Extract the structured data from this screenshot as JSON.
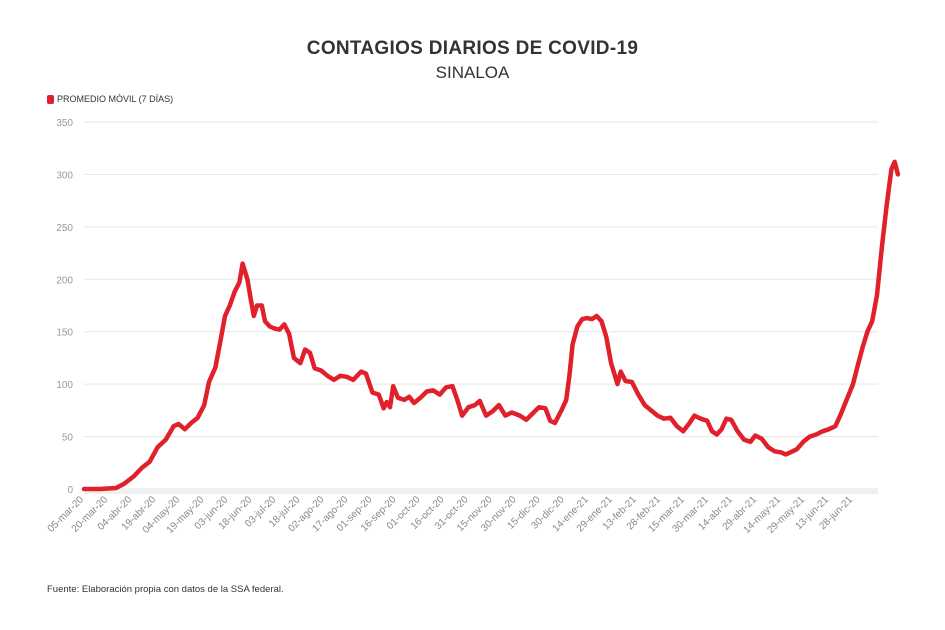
{
  "colors": {
    "series": "#e0202a",
    "grid": "#e6e6e6",
    "tick_text": "#999999",
    "title": "#333333"
  },
  "legend": {
    "label": "PROMEDIO MÓVIL (7 DÍAS)"
  },
  "footer": {
    "source": "Fuente: Elaboración propia con datos de la SSA federal."
  },
  "chart_data": {
    "type": "line",
    "title": "CONTAGIOS DIARIOS DE COVID-19",
    "subtitle": "SINALOA",
    "xlabel": "",
    "ylabel": "",
    "ylim": [
      0,
      350
    ],
    "yticks": [
      0,
      50,
      100,
      150,
      200,
      250,
      300,
      350
    ],
    "grid": true,
    "legend_position": "top-left",
    "xlim": [
      "2020-03-05",
      "2021-07-07"
    ],
    "x_tick_labels": [
      "05-mar-20",
      "20-mar-20",
      "04-abr-20",
      "19-abr-20",
      "04-may-20",
      "19-may-20",
      "03-jun-20",
      "18-jun-20",
      "03-jul-20",
      "18-jul-20",
      "02-ago-20",
      "17-ago-20",
      "01-sep-20",
      "16-sep-20",
      "01-oct-20",
      "16-oct-20",
      "31-oct-20",
      "15-nov-20",
      "30-nov-20",
      "15-dic-20",
      "30-dic-20",
      "14-ene-21",
      "29-ene-21",
      "13-feb-21",
      "28-feb-21",
      "15-mar-21",
      "30-mar-21",
      "14-abr-21",
      "29-abr-21",
      "14-may-21",
      "29-may-21",
      "13-jun-21",
      "28-jun-21"
    ],
    "series": [
      {
        "name": "PROMEDIO MÓVIL (7 DÍAS)",
        "color": "#e0202a",
        "points": [
          [
            "2020-03-05",
            0
          ],
          [
            "2020-03-15",
            0
          ],
          [
            "2020-03-25",
            1
          ],
          [
            "2020-03-30",
            5
          ],
          [
            "2020-04-05",
            12
          ],
          [
            "2020-04-10",
            20
          ],
          [
            "2020-04-15",
            26
          ],
          [
            "2020-04-20",
            40
          ],
          [
            "2020-04-25",
            47
          ],
          [
            "2020-04-30",
            60
          ],
          [
            "2020-05-03",
            62
          ],
          [
            "2020-05-07",
            57
          ],
          [
            "2020-05-11",
            63
          ],
          [
            "2020-05-15",
            68
          ],
          [
            "2020-05-19",
            80
          ],
          [
            "2020-05-22",
            102
          ],
          [
            "2020-05-26",
            116
          ],
          [
            "2020-05-29",
            140
          ],
          [
            "2020-06-01",
            165
          ],
          [
            "2020-06-04",
            175
          ],
          [
            "2020-06-07",
            188
          ],
          [
            "2020-06-10",
            197
          ],
          [
            "2020-06-12",
            215
          ],
          [
            "2020-06-15",
            200
          ],
          [
            "2020-06-17",
            182
          ],
          [
            "2020-06-19",
            165
          ],
          [
            "2020-06-21",
            175
          ],
          [
            "2020-06-24",
            175
          ],
          [
            "2020-06-26",
            160
          ],
          [
            "2020-06-29",
            155
          ],
          [
            "2020-07-02",
            153
          ],
          [
            "2020-07-05",
            152
          ],
          [
            "2020-07-08",
            157
          ],
          [
            "2020-07-11",
            148
          ],
          [
            "2020-07-14",
            125
          ],
          [
            "2020-07-18",
            120
          ],
          [
            "2020-07-21",
            133
          ],
          [
            "2020-07-24",
            130
          ],
          [
            "2020-07-27",
            115
          ],
          [
            "2020-07-31",
            113
          ],
          [
            "2020-08-04",
            108
          ],
          [
            "2020-08-08",
            104
          ],
          [
            "2020-08-12",
            108
          ],
          [
            "2020-08-16",
            107
          ],
          [
            "2020-08-20",
            104
          ],
          [
            "2020-08-25",
            112
          ],
          [
            "2020-08-28",
            110
          ],
          [
            "2020-09-01",
            92
          ],
          [
            "2020-09-05",
            90
          ],
          [
            "2020-09-08",
            77
          ],
          [
            "2020-09-10",
            83
          ],
          [
            "2020-09-12",
            78
          ],
          [
            "2020-09-14",
            98
          ],
          [
            "2020-09-17",
            87
          ],
          [
            "2020-09-21",
            85
          ],
          [
            "2020-09-24",
            88
          ],
          [
            "2020-09-27",
            82
          ],
          [
            "2020-10-01",
            87
          ],
          [
            "2020-10-05",
            93
          ],
          [
            "2020-10-09",
            94
          ],
          [
            "2020-10-13",
            90
          ],
          [
            "2020-10-17",
            97
          ],
          [
            "2020-10-21",
            98
          ],
          [
            "2020-10-24",
            85
          ],
          [
            "2020-10-27",
            70
          ],
          [
            "2020-10-31",
            78
          ],
          [
            "2020-11-04",
            80
          ],
          [
            "2020-11-07",
            84
          ],
          [
            "2020-11-11",
            70
          ],
          [
            "2020-11-15",
            74
          ],
          [
            "2020-11-19",
            80
          ],
          [
            "2020-11-23",
            70
          ],
          [
            "2020-11-27",
            73
          ],
          [
            "2020-12-02",
            70
          ],
          [
            "2020-12-06",
            66
          ],
          [
            "2020-12-10",
            72
          ],
          [
            "2020-12-14",
            78
          ],
          [
            "2020-12-18",
            77
          ],
          [
            "2020-12-21",
            65
          ],
          [
            "2020-12-24",
            63
          ],
          [
            "2020-12-28",
            75
          ],
          [
            "2020-12-31",
            85
          ],
          [
            "2021-01-02",
            108
          ],
          [
            "2021-01-04",
            138
          ],
          [
            "2021-01-07",
            155
          ],
          [
            "2021-01-10",
            162
          ],
          [
            "2021-01-13",
            163
          ],
          [
            "2021-01-16",
            162
          ],
          [
            "2021-01-19",
            165
          ],
          [
            "2021-01-22",
            160
          ],
          [
            "2021-01-25",
            145
          ],
          [
            "2021-01-28",
            120
          ],
          [
            "2021-02-01",
            100
          ],
          [
            "2021-02-03",
            112
          ],
          [
            "2021-02-06",
            103
          ],
          [
            "2021-02-10",
            102
          ],
          [
            "2021-02-14",
            90
          ],
          [
            "2021-02-18",
            80
          ],
          [
            "2021-02-22",
            75
          ],
          [
            "2021-02-26",
            70
          ],
          [
            "2021-03-02",
            67
          ],
          [
            "2021-03-06",
            68
          ],
          [
            "2021-03-10",
            60
          ],
          [
            "2021-03-14",
            55
          ],
          [
            "2021-03-18",
            63
          ],
          [
            "2021-03-21",
            70
          ],
          [
            "2021-03-25",
            67
          ],
          [
            "2021-03-29",
            65
          ],
          [
            "2021-04-01",
            55
          ],
          [
            "2021-04-04",
            52
          ],
          [
            "2021-04-07",
            57
          ],
          [
            "2021-04-10",
            67
          ],
          [
            "2021-04-13",
            66
          ],
          [
            "2021-04-17",
            55
          ],
          [
            "2021-04-21",
            47
          ],
          [
            "2021-04-25",
            45
          ],
          [
            "2021-04-28",
            51
          ],
          [
            "2021-05-02",
            48
          ],
          [
            "2021-05-06",
            40
          ],
          [
            "2021-05-10",
            36
          ],
          [
            "2021-05-14",
            35
          ],
          [
            "2021-05-17",
            33
          ],
          [
            "2021-05-20",
            35
          ],
          [
            "2021-05-24",
            38
          ],
          [
            "2021-05-28",
            45
          ],
          [
            "2021-06-01",
            50
          ],
          [
            "2021-06-05",
            52
          ],
          [
            "2021-06-09",
            55
          ],
          [
            "2021-06-13",
            57
          ],
          [
            "2021-06-17",
            60
          ],
          [
            "2021-06-20",
            70
          ],
          [
            "2021-06-24",
            85
          ],
          [
            "2021-06-28",
            100
          ],
          [
            "2021-07-01",
            118
          ],
          [
            "2021-07-04",
            135
          ],
          [
            "2021-07-07",
            150
          ],
          [
            "2021-07-10",
            160
          ],
          [
            "2021-07-13",
            185
          ],
          [
            "2021-07-16",
            230
          ],
          [
            "2021-07-19",
            270
          ],
          [
            "2021-07-22",
            305
          ],
          [
            "2021-07-24",
            312
          ],
          [
            "2021-07-26",
            300
          ]
        ]
      }
    ]
  }
}
